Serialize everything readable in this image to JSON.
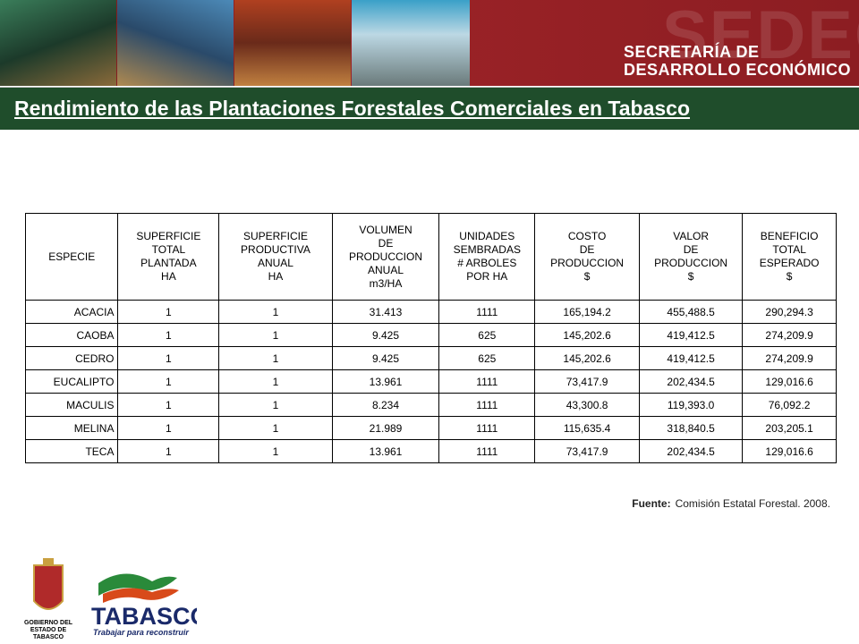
{
  "header": {
    "watermark": "SEDECO",
    "lines": [
      "SECRETARÍA DE",
      "DESARROLLO ECONÓMICO"
    ]
  },
  "title": "Rendimiento de las Plantaciones Forestales Comerciales en Tabasco",
  "table": {
    "columns": [
      "ESPECIE",
      "SUPERFICIE\nTOTAL\nPLANTADA\nHA",
      "SUPERFICIE\nPRODUCTIVA\nANUAL\nHA",
      "VOLUMEN\nDE\nPRODUCCION\nANUAL\nm3/HA",
      "UNIDADES\nSEMBRADAS\n# ARBOLES\nPOR HA",
      "COSTO\nDE\nPRODUCCION\n$",
      "VALOR\nDE\nPRODUCCION\n$",
      "BENEFICIO\nTOTAL\nESPERADO\n$"
    ],
    "rows": [
      [
        "ACACIA",
        "1",
        "1",
        "31.413",
        "1111",
        "165,194.2",
        "455,488.5",
        "290,294.3"
      ],
      [
        "CAOBA",
        "1",
        "1",
        "9.425",
        "625",
        "145,202.6",
        "419,412.5",
        "274,209.9"
      ],
      [
        "CEDRO",
        "1",
        "1",
        "9.425",
        "625",
        "145,202.6",
        "419,412.5",
        "274,209.9"
      ],
      [
        "EUCALIPTO",
        "1",
        "1",
        "13.961",
        "1111",
        "73,417.9",
        "202,434.5",
        "129,016.6"
      ],
      [
        "MACULIS",
        "1",
        "1",
        "8.234",
        "1111",
        "43,300.8",
        "119,393.0",
        "76,092.2"
      ],
      [
        "MELINA",
        "1",
        "1",
        "21.989",
        "1111",
        "115,635.4",
        "318,840.5",
        "203,205.1"
      ],
      [
        "TECA",
        "1",
        "1",
        "13.961",
        "1111",
        "73,417.9",
        "202,434.5",
        "129,016.6"
      ]
    ]
  },
  "source": {
    "label": "Fuente:",
    "text": "Comisión Estatal Forestal. 2008."
  },
  "logos": {
    "state": [
      "GOBIERNO DEL",
      "ESTADO DE",
      "TABASCO"
    ],
    "brand": "TABASCO",
    "slogan": "Trabajar para reconstruir"
  }
}
